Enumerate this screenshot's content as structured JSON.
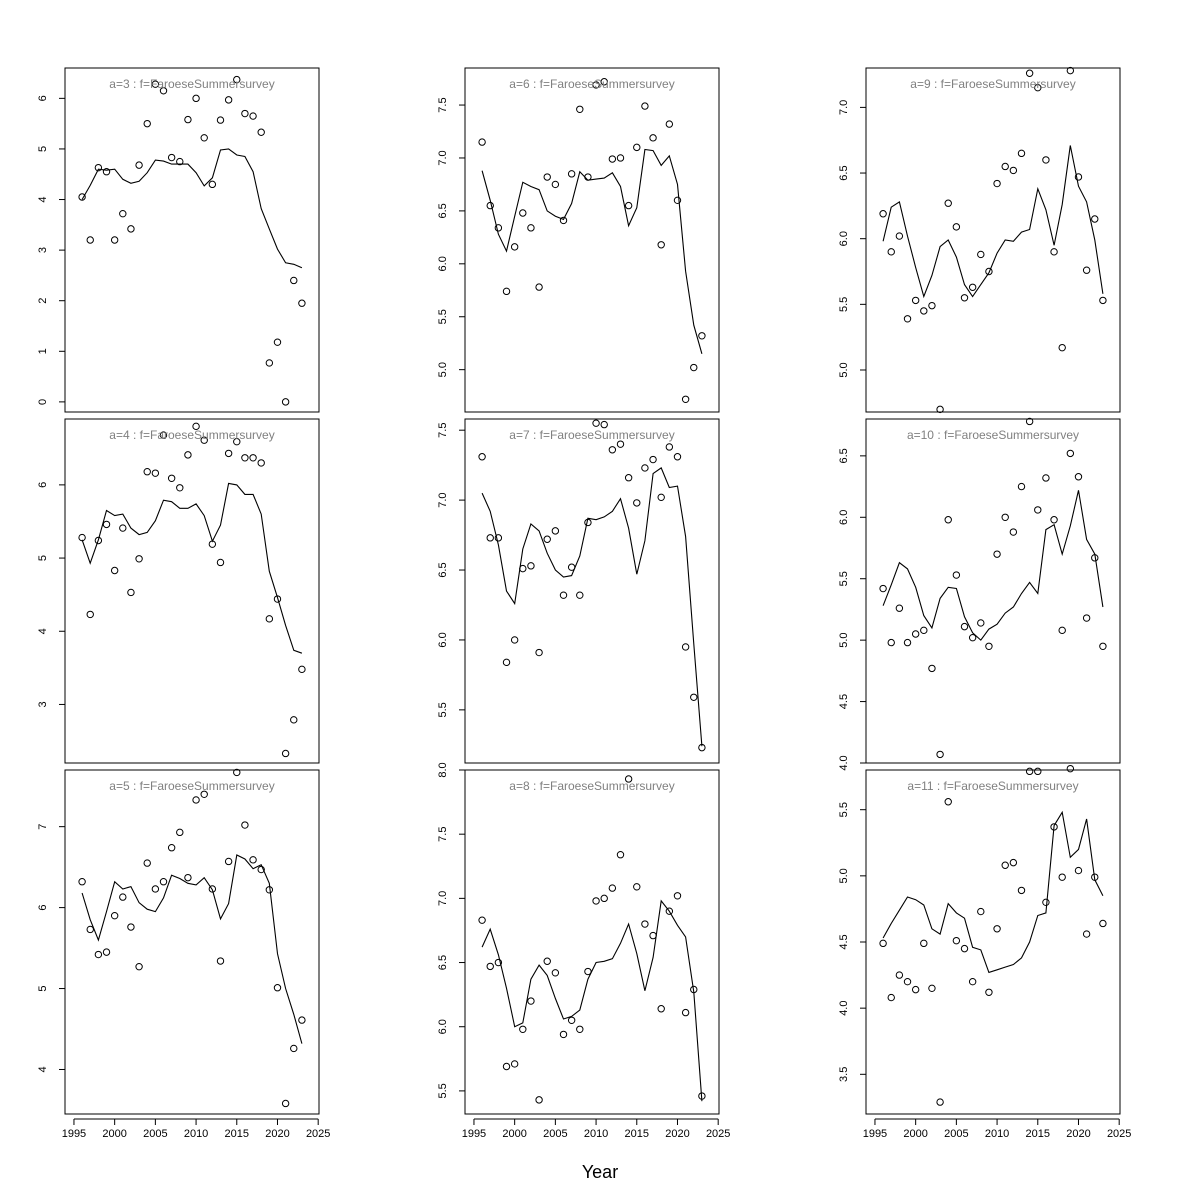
{
  "chart_data": {
    "type": "scatter",
    "xlabel": "Year",
    "x_ticks": [
      1995,
      2000,
      2005,
      2010,
      2015,
      2020,
      2025
    ],
    "xlim": [
      1995,
      2025
    ],
    "colors": {
      "points": "#000000",
      "line": "#000000",
      "label": "#808080",
      "frame": "#000000"
    },
    "years": [
      1996,
      1997,
      1998,
      1999,
      2000,
      2001,
      2002,
      2003,
      2004,
      2005,
      2006,
      2007,
      2008,
      2009,
      2010,
      2011,
      2012,
      2013,
      2014,
      2015,
      2016,
      2017,
      2018,
      2019,
      2020,
      2021,
      2022,
      2023
    ],
    "panels": [
      {
        "label": "a=3  :  f=FaroeseSummersurvey",
        "ylim": [
          -0.2,
          6.6
        ],
        "yticks": [
          0,
          1,
          2,
          3,
          4,
          5,
          6
        ],
        "ytick_labels": [
          "0",
          "1",
          "2",
          "3",
          "4",
          "5",
          "6"
        ],
        "observed": [
          4.05,
          3.2,
          4.63,
          4.55,
          3.2,
          3.72,
          3.42,
          4.68,
          5.5,
          6.28,
          6.15,
          4.83,
          4.75,
          5.58,
          6.0,
          5.22,
          4.3,
          5.57,
          5.97,
          6.37,
          5.7,
          5.65,
          5.33,
          0.77,
          1.18,
          0.0,
          2.4,
          1.95
        ],
        "fitted": [
          4.0,
          4.28,
          4.6,
          4.58,
          4.6,
          4.4,
          4.32,
          4.36,
          4.53,
          4.78,
          4.76,
          4.7,
          4.7,
          4.7,
          4.53,
          4.27,
          4.43,
          4.98,
          5.0,
          4.88,
          4.85,
          4.55,
          3.82,
          3.42,
          3.02,
          2.75,
          2.72,
          2.65
        ]
      },
      {
        "label": "a=4  :  f=FaroeseSummersurvey",
        "ylim": [
          2.2,
          6.9
        ],
        "yticks": [
          3,
          4,
          5,
          6
        ],
        "ytick_labels": [
          "3",
          "4",
          "5",
          "6"
        ],
        "observed": [
          5.28,
          4.23,
          5.24,
          5.46,
          4.83,
          5.41,
          4.53,
          4.99,
          6.18,
          6.16,
          6.68,
          6.09,
          5.96,
          6.41,
          6.8,
          6.61,
          5.19,
          4.94,
          6.43,
          6.59,
          6.37,
          6.37,
          6.3,
          4.17,
          4.44,
          2.33,
          2.79,
          3.48
        ],
        "fitted": [
          5.25,
          4.93,
          5.25,
          5.65,
          5.58,
          5.6,
          5.41,
          5.32,
          5.35,
          5.51,
          5.79,
          5.77,
          5.68,
          5.68,
          5.74,
          5.58,
          5.23,
          5.45,
          6.02,
          6.0,
          5.87,
          5.87,
          5.6,
          4.82,
          4.46,
          4.08,
          3.74,
          3.7
        ]
      },
      {
        "label": "a=5  :  f=FaroeseSummersurvey",
        "ylim": [
          3.45,
          7.7
        ],
        "yticks": [
          4,
          5,
          6,
          7
        ],
        "ytick_labels": [
          "4",
          "5",
          "6",
          "7"
        ],
        "observed": [
          6.32,
          5.73,
          5.42,
          5.45,
          5.9,
          6.13,
          5.76,
          5.27,
          6.55,
          6.23,
          6.32,
          6.74,
          6.93,
          6.37,
          7.33,
          7.4,
          6.23,
          5.34,
          6.57,
          7.67,
          7.02,
          6.59,
          6.47,
          6.22,
          5.01,
          3.58,
          4.26,
          4.61
        ],
        "fitted": [
          6.18,
          5.85,
          5.6,
          5.95,
          6.32,
          6.23,
          6.26,
          6.06,
          5.98,
          5.95,
          6.12,
          6.4,
          6.36,
          6.3,
          6.28,
          6.37,
          6.22,
          5.86,
          6.05,
          6.65,
          6.6,
          6.48,
          6.53,
          6.3,
          5.43,
          5.0,
          4.68,
          4.32
        ]
      },
      {
        "label": "a=6  :  f=FaroeseSummersurvey",
        "ylim": [
          4.6,
          7.85
        ],
        "yticks": [
          5.0,
          5.5,
          6.0,
          6.5,
          7.0,
          7.5
        ],
        "ytick_labels": [
          "5.0",
          "5.5",
          "6.0",
          "6.5",
          "7.0",
          "7.5"
        ],
        "observed": [
          7.15,
          6.55,
          6.34,
          5.74,
          6.16,
          6.48,
          6.34,
          5.78,
          6.82,
          6.75,
          6.41,
          6.85,
          7.46,
          6.82,
          7.69,
          7.72,
          6.99,
          7.0,
          6.55,
          7.1,
          7.49,
          7.19,
          6.18,
          7.32,
          6.6,
          4.72,
          5.02,
          5.32
        ],
        "fitted": [
          6.88,
          6.6,
          6.28,
          6.12,
          6.45,
          6.77,
          6.73,
          6.7,
          6.5,
          6.45,
          6.42,
          6.57,
          6.87,
          6.79,
          6.8,
          6.81,
          6.86,
          6.73,
          6.36,
          6.53,
          7.08,
          7.07,
          6.93,
          7.02,
          6.75,
          5.93,
          5.42,
          5.15
        ]
      },
      {
        "label": "a=7  :  f=FaroeseSummersurvey",
        "ylim": [
          5.12,
          7.58
        ],
        "yticks": [
          5.5,
          6.0,
          6.5,
          7.0,
          7.5
        ],
        "ytick_labels": [
          "5.5",
          "6.0",
          "6.5",
          "7.0",
          "7.5"
        ],
        "observed": [
          7.31,
          6.73,
          6.73,
          5.84,
          6.0,
          6.51,
          6.53,
          5.91,
          6.72,
          6.78,
          6.32,
          6.52,
          6.32,
          6.84,
          7.55,
          7.54,
          7.36,
          7.4,
          7.16,
          6.98,
          7.23,
          7.29,
          7.02,
          7.38,
          7.31,
          5.95,
          5.59,
          5.23
        ],
        "fitted": [
          7.05,
          6.92,
          6.68,
          6.35,
          6.26,
          6.65,
          6.83,
          6.78,
          6.62,
          6.5,
          6.45,
          6.46,
          6.6,
          6.87,
          6.86,
          6.88,
          6.92,
          7.01,
          6.8,
          6.47,
          6.71,
          7.19,
          7.23,
          7.09,
          7.1,
          6.74,
          5.97,
          5.24
        ]
      },
      {
        "label": "a=8  :  f=FaroeseSummersurvey",
        "ylim": [
          5.32,
          8.0
        ],
        "yticks": [
          5.5,
          6.0,
          6.5,
          7.0,
          7.5,
          8.0
        ],
        "ytick_labels": [
          "5.5",
          "6.0",
          "6.5",
          "7.0",
          "7.5",
          "8.0"
        ],
        "observed": [
          6.83,
          6.47,
          6.5,
          5.69,
          5.71,
          5.98,
          6.2,
          5.43,
          6.51,
          6.42,
          5.94,
          6.05,
          5.98,
          6.43,
          6.98,
          7.0,
          7.08,
          7.34,
          7.93,
          7.09,
          6.8,
          6.71,
          6.14,
          6.9,
          7.02,
          6.11,
          6.29,
          5.46
        ],
        "fitted": [
          6.62,
          6.76,
          6.56,
          6.3,
          6.0,
          6.03,
          6.37,
          6.48,
          6.4,
          6.22,
          6.06,
          6.08,
          6.13,
          6.37,
          6.5,
          6.51,
          6.53,
          6.65,
          6.8,
          6.57,
          6.28,
          6.54,
          6.98,
          6.9,
          6.79,
          6.7,
          6.27,
          5.42
        ]
      },
      {
        "label": "a=9  :  f=FaroeseSummersurvey",
        "ylim": [
          4.68,
          7.3
        ],
        "yticks": [
          5.0,
          5.5,
          6.0,
          6.5,
          7.0
        ],
        "ytick_labels": [
          "5.0",
          "5.5",
          "6.0",
          "6.5",
          "7.0"
        ],
        "observed": [
          6.19,
          5.9,
          6.02,
          5.39,
          5.53,
          5.45,
          5.49,
          4.7,
          6.27,
          6.09,
          5.55,
          5.63,
          5.88,
          5.75,
          6.42,
          6.55,
          6.52,
          6.65,
          7.26,
          7.15,
          6.6,
          5.9,
          5.17,
          7.28,
          6.47,
          5.76,
          6.15,
          5.53
        ],
        "fitted": [
          5.98,
          6.24,
          6.28,
          6.02,
          5.78,
          5.56,
          5.72,
          5.94,
          5.99,
          5.86,
          5.65,
          5.56,
          5.65,
          5.74,
          5.89,
          5.99,
          5.98,
          6.05,
          6.07,
          6.38,
          6.22,
          5.95,
          6.26,
          6.71,
          6.4,
          6.28,
          5.99,
          5.58
        ]
      },
      {
        "label": "a=10  :  f=FaroeseSummersurvey",
        "ylim": [
          4.0,
          6.8
        ],
        "yticks": [
          4.0,
          4.5,
          5.0,
          5.5,
          6.0,
          6.5
        ],
        "ytick_labels": [
          "4.0",
          "4.5",
          "5.0",
          "5.5",
          "6.0",
          "6.5"
        ],
        "observed": [
          5.42,
          4.98,
          5.26,
          4.98,
          5.05,
          5.08,
          4.77,
          4.07,
          5.98,
          5.53,
          5.11,
          5.02,
          5.14,
          4.95,
          5.7,
          6.0,
          5.88,
          6.25,
          6.78,
          6.06,
          6.32,
          5.98,
          5.08,
          6.52,
          6.33,
          5.18,
          5.67,
          4.95
        ],
        "fitted": [
          5.28,
          5.45,
          5.63,
          5.58,
          5.43,
          5.2,
          5.1,
          5.34,
          5.43,
          5.42,
          5.19,
          5.06,
          5.0,
          5.09,
          5.13,
          5.22,
          5.27,
          5.38,
          5.47,
          5.38,
          5.9,
          5.94,
          5.7,
          5.93,
          6.22,
          5.82,
          5.7,
          5.27
        ]
      },
      {
        "label": "a=11  :  f=FaroeseSummersurvey",
        "ylim": [
          3.2,
          5.8
        ],
        "yticks": [
          3.5,
          4.0,
          4.5,
          5.0,
          5.5
        ],
        "ytick_labels": [
          "3.5",
          "4.0",
          "4.5",
          "5.0",
          "5.5"
        ],
        "observed": [
          4.49,
          4.08,
          4.25,
          4.2,
          4.14,
          4.49,
          4.15,
          3.29,
          5.56,
          4.51,
          4.45,
          4.2,
          4.73,
          4.12,
          4.6,
          5.08,
          5.1,
          4.89,
          5.79,
          5.79,
          4.8,
          5.37,
          4.99,
          5.81,
          5.04,
          4.56,
          4.99,
          4.64
        ],
        "fitted": [
          4.53,
          4.64,
          4.74,
          4.84,
          4.82,
          4.78,
          4.6,
          4.56,
          4.79,
          4.72,
          4.68,
          4.46,
          4.44,
          4.27,
          4.29,
          4.31,
          4.33,
          4.38,
          4.5,
          4.7,
          4.72,
          5.38,
          5.48,
          5.14,
          5.2,
          5.43,
          4.97,
          4.85
        ]
      }
    ]
  }
}
